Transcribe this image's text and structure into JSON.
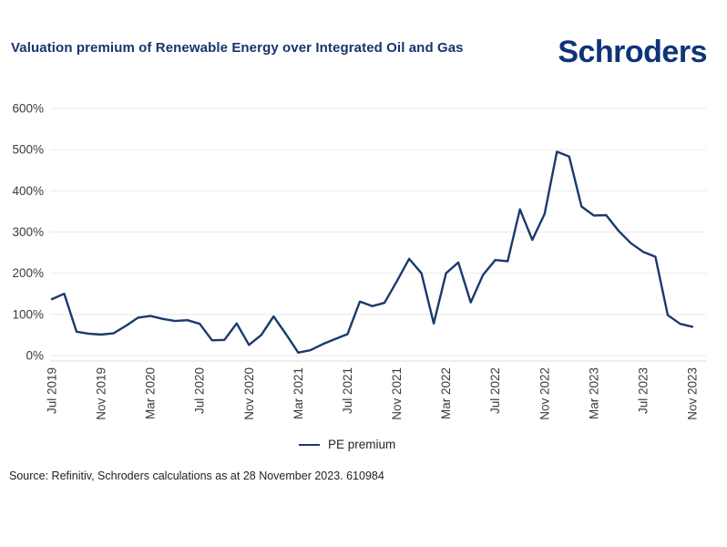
{
  "header": {
    "title": "Valuation premium of Renewable Energy over Integrated Oil and Gas",
    "logo_text": "Schroders"
  },
  "chart_data": {
    "type": "line",
    "title": "Valuation premium of Renewable Energy over Integrated Oil and Gas",
    "x": [
      "Jul 2019",
      "Aug 2019",
      "Sep 2019",
      "Oct 2019",
      "Nov 2019",
      "Dec 2019",
      "Jan 2020",
      "Feb 2020",
      "Mar 2020",
      "Apr 2020",
      "May 2020",
      "Jun 2020",
      "Jul 2020",
      "Aug 2020",
      "Sep 2020",
      "Oct 2020",
      "Nov 2020",
      "Dec 2020",
      "Jan 2021",
      "Feb 2021",
      "Mar 2021",
      "Apr 2021",
      "May 2021",
      "Jun 2021",
      "Jul 2021",
      "Aug 2021",
      "Sep 2021",
      "Oct 2021",
      "Nov 2021",
      "Dec 2021",
      "Jan 2022",
      "Feb 2022",
      "Mar 2022",
      "Apr 2022",
      "May 2022",
      "Jun 2022",
      "Jul 2022",
      "Aug 2022",
      "Sep 2022",
      "Oct 2022",
      "Nov 2022",
      "Dec 2022",
      "Jan 2023",
      "Feb 2023",
      "Mar 2023",
      "Apr 2023",
      "May 2023",
      "Jun 2023",
      "Jul 2023",
      "Aug 2023",
      "Sep 2023",
      "Oct 2023",
      "Nov 2023"
    ],
    "series": [
      {
        "name": "PE premium",
        "color": "#1a3a6e",
        "values": [
          137,
          150,
          58,
          53,
          51,
          54,
          72,
          92,
          96,
          89,
          84,
          86,
          77,
          37,
          38,
          78,
          26,
          50,
          95,
          52,
          7,
          13,
          28,
          40,
          52,
          131,
          120,
          128,
          180,
          235,
          200,
          78,
          200,
          226,
          129,
          196,
          232,
          229,
          355,
          281,
          344,
          495,
          483,
          362,
          340,
          341,
          303,
          273,
          252,
          240,
          98,
          77,
          70
        ]
      }
    ],
    "x_tick_every": 4,
    "x_tick_labels": [
      "Jul 2019",
      "Nov 2019",
      "Mar 2020",
      "Jul 2020",
      "Nov 2020",
      "Mar 2021",
      "Jul 2021",
      "Nov 2021",
      "Mar 2022",
      "Jul 2022",
      "Nov 2022",
      "Mar 2023",
      "Jul 2023",
      "Nov 2023"
    ],
    "y_ticks": [
      "0%",
      "100%",
      "200%",
      "300%",
      "400%",
      "500%",
      "600%"
    ],
    "ylim": [
      0,
      600
    ],
    "y_unit": "%",
    "grid": "horizontal",
    "legend_position": "bottom-center"
  },
  "legend": {
    "label": "PE premium"
  },
  "footer": {
    "source": "Source: Refinitiv, Schroders calculations as at 28 November 2023. 610984"
  },
  "colors": {
    "title": "#16356e",
    "logo": "#0f3478",
    "line": "#1a3a6e",
    "grid": "#e9e9e9",
    "axis": "#dedede",
    "tick_text": "#3b3b3b"
  }
}
